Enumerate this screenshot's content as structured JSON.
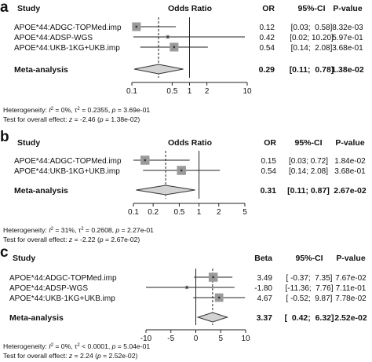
{
  "panels": [
    {
      "letter": "a",
      "headers": {
        "study": "Study",
        "plot": "Odds Ratio",
        "est": "OR",
        "ci": "95%-CI",
        "p": "P-value"
      },
      "studies": [
        {
          "name": "APOE*44:ADGC-TOPMed.imp",
          "est": 0.12,
          "lo": 0.03,
          "hi": 0.58,
          "est_text": "0.12",
          "ci_text": "[0.03;  0.58]",
          "p_text": "8.32e-03",
          "weight": 0.47
        },
        {
          "name": "APOE*44:ADSP-WGS",
          "est": 0.42,
          "lo": 0.02,
          "hi": 10.2,
          "est_text": "0.42",
          "ci_text": "[0.02; 10.20]",
          "p_text": "5.97e-01",
          "weight": 0.06
        },
        {
          "name": "APOE*44:UKB-1KG+UKB.imp",
          "est": 0.54,
          "lo": 0.14,
          "hi": 2.08,
          "est_text": "0.54",
          "ci_text": "[0.14;  2.08]",
          "p_text": "3.68e-01",
          "weight": 0.47
        }
      ],
      "meta": {
        "label": "Meta-analysis",
        "est": 0.29,
        "lo": 0.11,
        "hi": 0.78,
        "est_text": "0.29",
        "ci_text": "[0.11;  0.78]",
        "p_text": "1.38e-02"
      },
      "axis": {
        "scale": "log",
        "ticks": [
          0.1,
          0.5,
          1,
          2,
          10
        ],
        "tick_labels": [
          "0.1",
          "0.5",
          "1",
          "2",
          "10"
        ],
        "null": 1
      },
      "notes": {
        "het_prefix": "Heterogeneity: ",
        "het_i2_sym": "I",
        "het_i2_sup": "2",
        "het_i2_val": " = 0%, ",
        "het_tau_sym": "τ",
        "het_tau_sup": "2",
        "het_tau_val": " = 0.2355, ",
        "het_p_sym": "p",
        "het_p_val": " = 3.69e-01",
        "test_prefix": "Test for overall effect: ",
        "test_z_sym": "z",
        "test_z_val": " = -2.46 (",
        "test_p_sym": "p",
        "test_p_val": " = 1.38e-02)"
      }
    },
    {
      "letter": "b",
      "headers": {
        "study": "Study",
        "plot": "Odds Ratio",
        "est": "OR",
        "ci": "95%-CI",
        "p": "P-value"
      },
      "studies": [
        {
          "name": "APOE*44:ADGC-TOPMed.imp",
          "est": 0.15,
          "lo": 0.03,
          "hi": 0.72,
          "est_text": "0.15",
          "ci_text": "[0.03; 0.72]",
          "p_text": "1.84e-02",
          "weight": 0.5
        },
        {
          "name": "APOE*44:UKB-1KG+UKB.imp",
          "est": 0.54,
          "lo": 0.14,
          "hi": 2.08,
          "est_text": "0.54",
          "ci_text": "[0.14; 2.08]",
          "p_text": "3.68e-01",
          "weight": 0.5
        }
      ],
      "meta": {
        "label": "Meta-analysis",
        "est": 0.31,
        "lo": 0.11,
        "hi": 0.87,
        "est_text": "0.31",
        "ci_text": "[0.11; 0.87]",
        "p_text": "2.67e-02"
      },
      "axis": {
        "scale": "log",
        "ticks": [
          0.1,
          0.2,
          0.5,
          1,
          2,
          5
        ],
        "tick_labels": [
          "0.1",
          "0.2",
          "0.5",
          "1",
          "2",
          "5"
        ],
        "null": 1
      },
      "notes": {
        "het_prefix": "Heterogeneity: ",
        "het_i2_sym": "I",
        "het_i2_sup": "2",
        "het_i2_val": " = 31%, ",
        "het_tau_sym": "τ",
        "het_tau_sup": "2",
        "het_tau_val": " = 0.2608, ",
        "het_p_sym": "p",
        "het_p_val": " = 2.27e-01",
        "test_prefix": "Test for overall effect: ",
        "test_z_sym": "z",
        "test_z_val": " = -2.22 (",
        "test_p_sym": "p",
        "test_p_val": " = 2.67e-02)"
      }
    },
    {
      "letter": "c",
      "headers": {
        "study": "Study",
        "plot": "",
        "est": "Beta",
        "ci": "95%-CI",
        "p": "P-value"
      },
      "studies": [
        {
          "name": "APOE*44:ADGC-TOPMed.imp",
          "est": 3.49,
          "lo": -0.37,
          "hi": 7.35,
          "est_text": "3.49",
          "ci_text": "[ -0.37;  7.35]",
          "p_text": "7.67e-02",
          "weight": 0.5
        },
        {
          "name": "APOE*44:ADSP-WGS",
          "est": -1.8,
          "lo": -11.36,
          "hi": 7.76,
          "est_text": "-1.80",
          "ci_text": "[-11.36;  7.76]",
          "p_text": "7.11e-01",
          "weight": 0.05
        },
        {
          "name": "APOE*44:UKB-1KG+UKB.imp",
          "est": 4.67,
          "lo": -0.52,
          "hi": 9.87,
          "est_text": "4.67",
          "ci_text": "[ -0.52;  9.87]",
          "p_text": "7.78e-02",
          "weight": 0.45
        }
      ],
      "meta": {
        "label": "Meta-analysis",
        "est": 3.37,
        "lo": 0.42,
        "hi": 6.32,
        "est_text": "3.37",
        "ci_text": "[  0.42;  6.32]",
        "p_text": "2.52e-02"
      },
      "axis": {
        "scale": "linear",
        "ticks": [
          -10,
          -5,
          0,
          5,
          10
        ],
        "tick_labels": [
          "-10",
          "-5",
          "0",
          "5",
          "10"
        ],
        "null": 0
      },
      "notes": {
        "het_prefix": "Heterogeneity: ",
        "het_i2_sym": "I",
        "het_i2_sup": "2",
        "het_i2_val": " = 0%, ",
        "het_tau_sym": "τ",
        "het_tau_sup": "2",
        "het_tau_val": " < 0.0001, ",
        "het_p_sym": "p",
        "het_p_val": " = 5.04e-01",
        "test_prefix": "Test for overall effect: ",
        "test_z_sym": "z",
        "test_z_val": " = 2.24 (",
        "test_p_sym": "p",
        "test_p_val": " = 2.52e-02)"
      }
    }
  ],
  "chart_data": [
    {
      "type": "forest",
      "title": "a",
      "xlabel": "Odds Ratio",
      "xscale": "log",
      "xticks": [
        0.1,
        0.5,
        1,
        2,
        10
      ],
      "rows": [
        {
          "study": "APOE*44:ADGC-TOPMed.imp",
          "or": 0.12,
          "ci": [
            0.03,
            0.58
          ],
          "p": "8.32e-03"
        },
        {
          "study": "APOE*44:ADSP-WGS",
          "or": 0.42,
          "ci": [
            0.02,
            10.2
          ],
          "p": "5.97e-01"
        },
        {
          "study": "APOE*44:UKB-1KG+UKB.imp",
          "or": 0.54,
          "ci": [
            0.14,
            2.08
          ],
          "p": "3.68e-01"
        }
      ],
      "summary": {
        "label": "Meta-analysis",
        "or": 0.29,
        "ci": [
          0.11,
          0.78
        ],
        "p": "1.38e-02"
      },
      "heterogeneity": {
        "I2": "0%",
        "tau2": "0.2355",
        "p": "3.69e-01"
      },
      "overall_test": {
        "z": -2.46,
        "p": "1.38e-02"
      }
    },
    {
      "type": "forest",
      "title": "b",
      "xlabel": "Odds Ratio",
      "xscale": "log",
      "xticks": [
        0.1,
        0.2,
        0.5,
        1,
        2,
        5
      ],
      "rows": [
        {
          "study": "APOE*44:ADGC-TOPMed.imp",
          "or": 0.15,
          "ci": [
            0.03,
            0.72
          ],
          "p": "1.84e-02"
        },
        {
          "study": "APOE*44:UKB-1KG+UKB.imp",
          "or": 0.54,
          "ci": [
            0.14,
            2.08
          ],
          "p": "3.68e-01"
        }
      ],
      "summary": {
        "label": "Meta-analysis",
        "or": 0.31,
        "ci": [
          0.11,
          0.87
        ],
        "p": "2.67e-02"
      },
      "heterogeneity": {
        "I2": "31%",
        "tau2": "0.2608",
        "p": "2.27e-01"
      },
      "overall_test": {
        "z": -2.22,
        "p": "2.67e-02"
      }
    },
    {
      "type": "forest",
      "title": "c",
      "xlabel": "",
      "xscale": "linear",
      "xticks": [
        -10,
        -5,
        0,
        5,
        10
      ],
      "rows": [
        {
          "study": "APOE*44:ADGC-TOPMed.imp",
          "beta": 3.49,
          "ci": [
            -0.37,
            7.35
          ],
          "p": "7.67e-02"
        },
        {
          "study": "APOE*44:ADSP-WGS",
          "beta": -1.8,
          "ci": [
            -11.36,
            7.76
          ],
          "p": "7.11e-01"
        },
        {
          "study": "APOE*44:UKB-1KG+UKB.imp",
          "beta": 4.67,
          "ci": [
            -0.52,
            9.87
          ],
          "p": "7.78e-02"
        }
      ],
      "summary": {
        "label": "Meta-analysis",
        "beta": 3.37,
        "ci": [
          0.42,
          6.32
        ],
        "p": "2.52e-02"
      },
      "heterogeneity": {
        "I2": "0%",
        "tau2": "< 0.0001",
        "p": "5.04e-01"
      },
      "overall_test": {
        "z": 2.24,
        "p": "2.52e-02"
      }
    }
  ]
}
